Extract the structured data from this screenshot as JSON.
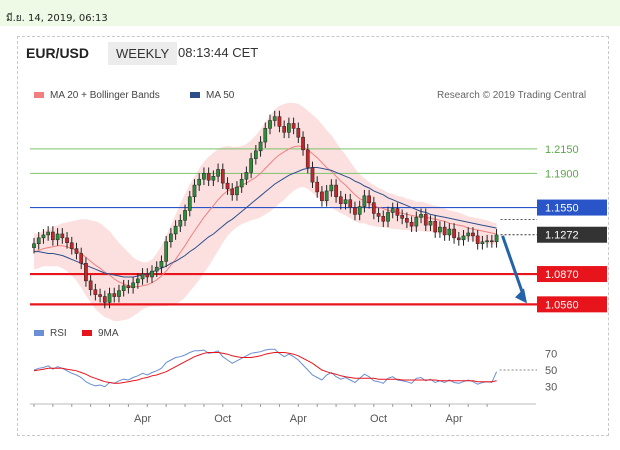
{
  "timestamp": "มี.ย. 14, 2019, 06:13",
  "header": {
    "pair": "EUR/USD",
    "timeframe": "WEEKLY",
    "time": "08:13:44 CET"
  },
  "legend": {
    "ma20_label": "MA 20 + Bollinger Bands",
    "ma50_label": "MA 50",
    "credit": "Research © 2019 Trading Central",
    "rsi_label": "RSI",
    "ma9_label": "9MA"
  },
  "colors": {
    "ma20": "#f08080",
    "ma50": "#2c4f8c",
    "bands": "#fbd6d6",
    "resistance": "#7cc26a",
    "key_level": "#2a55c8",
    "support": "#e8141c",
    "rsi": "#6a8fd6",
    "rsi_ma": "#e8141c",
    "arrow": "#2463a8"
  },
  "chart_data": {
    "type": "candlestick",
    "title": "EUR/USD",
    "xlabel": "",
    "ylabel": "",
    "x_tick_labels": [
      "Apr",
      "Oct",
      "Apr",
      "Oct",
      "Apr"
    ],
    "current_price": "1.1272",
    "levels": [
      {
        "value": 1.215,
        "label": "1.2150",
        "kind": "resistance"
      },
      {
        "value": 1.19,
        "label": "1.1900",
        "kind": "resistance"
      },
      {
        "value": 1.155,
        "label": "1.1550",
        "kind": "key"
      },
      {
        "value": 1.1272,
        "label": "1.1272",
        "kind": "current"
      },
      {
        "value": 1.087,
        "label": "1.0870",
        "kind": "support"
      },
      {
        "value": 1.056,
        "label": "1.0560",
        "kind": "support"
      }
    ],
    "price_close": [
      1.118,
      1.124,
      1.127,
      1.13,
      1.122,
      1.128,
      1.124,
      1.119,
      1.113,
      1.108,
      1.098,
      1.08,
      1.071,
      1.066,
      1.064,
      1.058,
      1.067,
      1.064,
      1.07,
      1.075,
      1.073,
      1.078,
      1.082,
      1.087,
      1.084,
      1.09,
      1.094,
      1.1,
      1.12,
      1.128,
      1.136,
      1.142,
      1.152,
      1.166,
      1.178,
      1.184,
      1.19,
      1.183,
      1.187,
      1.194,
      1.18,
      1.174,
      1.168,
      1.176,
      1.184,
      1.191,
      1.205,
      1.213,
      1.222,
      1.236,
      1.244,
      1.248,
      1.238,
      1.232,
      1.241,
      1.236,
      1.227,
      1.214,
      1.196,
      1.181,
      1.171,
      1.162,
      1.172,
      1.178,
      1.166,
      1.159,
      1.163,
      1.155,
      1.148,
      1.156,
      1.167,
      1.16,
      1.149,
      1.146,
      1.141,
      1.15,
      1.154,
      1.147,
      1.144,
      1.14,
      1.136,
      1.145,
      1.148,
      1.137,
      1.141,
      1.13,
      1.135,
      1.127,
      1.133,
      1.124,
      1.122,
      1.126,
      1.129,
      1.126,
      1.118,
      1.12,
      1.121,
      1.12,
      1.127
    ],
    "ma20": [
      1.11,
      1.111,
      1.113,
      1.114,
      1.115,
      1.116,
      1.116,
      1.115,
      1.113,
      1.111,
      1.108,
      1.104,
      1.1,
      1.096,
      1.093,
      1.089,
      1.086,
      1.082,
      1.079,
      1.077,
      1.075,
      1.074,
      1.074,
      1.075,
      1.076,
      1.078,
      1.081,
      1.085,
      1.09,
      1.096,
      1.102,
      1.109,
      1.116,
      1.124,
      1.131,
      1.138,
      1.145,
      1.151,
      1.157,
      1.163,
      1.168,
      1.172,
      1.174,
      1.176,
      1.178,
      1.18,
      1.183,
      1.186,
      1.19,
      1.195,
      1.2,
      1.205,
      1.209,
      1.212,
      1.215,
      1.217,
      1.218,
      1.217,
      1.214,
      1.21,
      1.206,
      1.201,
      1.196,
      1.192,
      1.187,
      1.182,
      1.178,
      1.173,
      1.168,
      1.164,
      1.162,
      1.159,
      1.157,
      1.155,
      1.154,
      1.152,
      1.151,
      1.15,
      1.149,
      1.148,
      1.147,
      1.146,
      1.146,
      1.145,
      1.144,
      1.143,
      1.142,
      1.141,
      1.139,
      1.138,
      1.137,
      1.136,
      1.134,
      1.133,
      1.132,
      1.131,
      1.13,
      1.129,
      1.128
    ],
    "ma50": [
      1.11,
      1.11,
      1.109,
      1.108,
      1.108,
      1.107,
      1.106,
      1.104,
      1.102,
      1.1,
      1.098,
      1.096,
      1.094,
      1.092,
      1.09,
      1.088,
      1.087,
      1.086,
      1.085,
      1.084,
      1.084,
      1.084,
      1.085,
      1.086,
      1.087,
      1.089,
      1.091,
      1.093,
      1.095,
      1.098,
      1.1,
      1.103,
      1.106,
      1.11,
      1.113,
      1.117,
      1.121,
      1.125,
      1.128,
      1.132,
      1.136,
      1.14,
      1.143,
      1.147,
      1.151,
      1.155,
      1.159,
      1.163,
      1.167,
      1.171,
      1.175,
      1.179,
      1.182,
      1.185,
      1.188,
      1.19,
      1.192,
      1.194,
      1.195,
      1.196,
      1.196,
      1.195,
      1.194,
      1.193,
      1.191,
      1.189,
      1.187,
      1.185,
      1.182,
      1.18,
      1.177,
      1.175,
      1.172,
      1.17,
      1.168,
      1.165,
      1.163,
      1.161,
      1.159,
      1.157,
      1.155,
      1.153,
      1.151,
      1.15,
      1.148,
      1.147,
      1.146,
      1.145,
      1.144,
      1.143,
      1.142,
      1.141,
      1.14,
      1.139,
      1.138,
      1.137,
      1.136,
      1.135,
      1.134
    ],
    "band_width": [
      0.018,
      0.018,
      0.018,
      0.019,
      0.02,
      0.021,
      0.023,
      0.025,
      0.028,
      0.031,
      0.035,
      0.039,
      0.042,
      0.045,
      0.046,
      0.046,
      0.045,
      0.043,
      0.04,
      0.037,
      0.034,
      0.03,
      0.027,
      0.024,
      0.023,
      0.024,
      0.027,
      0.031,
      0.036,
      0.041,
      0.046,
      0.05,
      0.053,
      0.055,
      0.056,
      0.057,
      0.057,
      0.056,
      0.054,
      0.052,
      0.049,
      0.046,
      0.043,
      0.041,
      0.04,
      0.04,
      0.041,
      0.043,
      0.045,
      0.047,
      0.049,
      0.05,
      0.05,
      0.049,
      0.047,
      0.045,
      0.043,
      0.041,
      0.04,
      0.04,
      0.04,
      0.039,
      0.038,
      0.037,
      0.035,
      0.033,
      0.031,
      0.029,
      0.027,
      0.025,
      0.023,
      0.022,
      0.021,
      0.02,
      0.019,
      0.018,
      0.018,
      0.017,
      0.017,
      0.016,
      0.016,
      0.015,
      0.015,
      0.015,
      0.014,
      0.014,
      0.014,
      0.013,
      0.013,
      0.013,
      0.013,
      0.012,
      0.012,
      0.012,
      0.012,
      0.012,
      0.012,
      0.011,
      0.011
    ],
    "rsi_ticks": [
      "70",
      "50",
      "30"
    ],
    "rsi_range": [
      20,
      80
    ],
    "rsi": [
      50,
      52,
      53,
      55,
      51,
      54,
      52,
      49,
      46,
      44,
      41,
      36,
      33,
      31,
      32,
      30,
      35,
      34,
      37,
      39,
      38,
      41,
      43,
      46,
      44,
      47,
      49,
      52,
      59,
      62,
      65,
      66,
      68,
      71,
      73,
      73,
      74,
      70,
      71,
      73,
      66,
      62,
      58,
      61,
      64,
      67,
      70,
      71,
      72,
      74,
      75,
      75,
      70,
      66,
      69,
      66,
      62,
      56,
      50,
      44,
      41,
      38,
      44,
      47,
      42,
      39,
      41,
      38,
      35,
      40,
      45,
      42,
      37,
      36,
      34,
      40,
      42,
      38,
      37,
      36,
      34,
      40,
      41,
      37,
      39,
      35,
      37,
      35,
      38,
      35,
      34,
      36,
      38,
      36,
      33,
      35,
      36,
      35,
      48
    ],
    "rsi_ma": [
      49,
      50,
      51,
      52,
      52,
      52,
      52,
      51,
      50,
      49,
      47,
      45,
      42,
      40,
      38,
      36,
      35,
      34,
      34,
      35,
      36,
      37,
      38,
      40,
      41,
      43,
      44,
      46,
      48,
      51,
      54,
      57,
      60,
      63,
      66,
      68,
      70,
      71,
      71,
      71,
      70,
      69,
      67,
      66,
      65,
      65,
      65,
      66,
      67,
      69,
      70,
      71,
      71,
      71,
      70,
      69,
      67,
      64,
      61,
      58,
      54,
      50,
      48,
      46,
      45,
      43,
      42,
      41,
      40,
      40,
      40,
      40,
      40,
      39,
      39,
      39,
      39,
      39,
      38,
      38,
      38,
      38,
      38,
      38,
      38,
      38,
      37,
      37,
      37,
      37,
      37,
      37,
      37,
      37,
      36,
      36,
      36,
      36,
      37
    ]
  }
}
